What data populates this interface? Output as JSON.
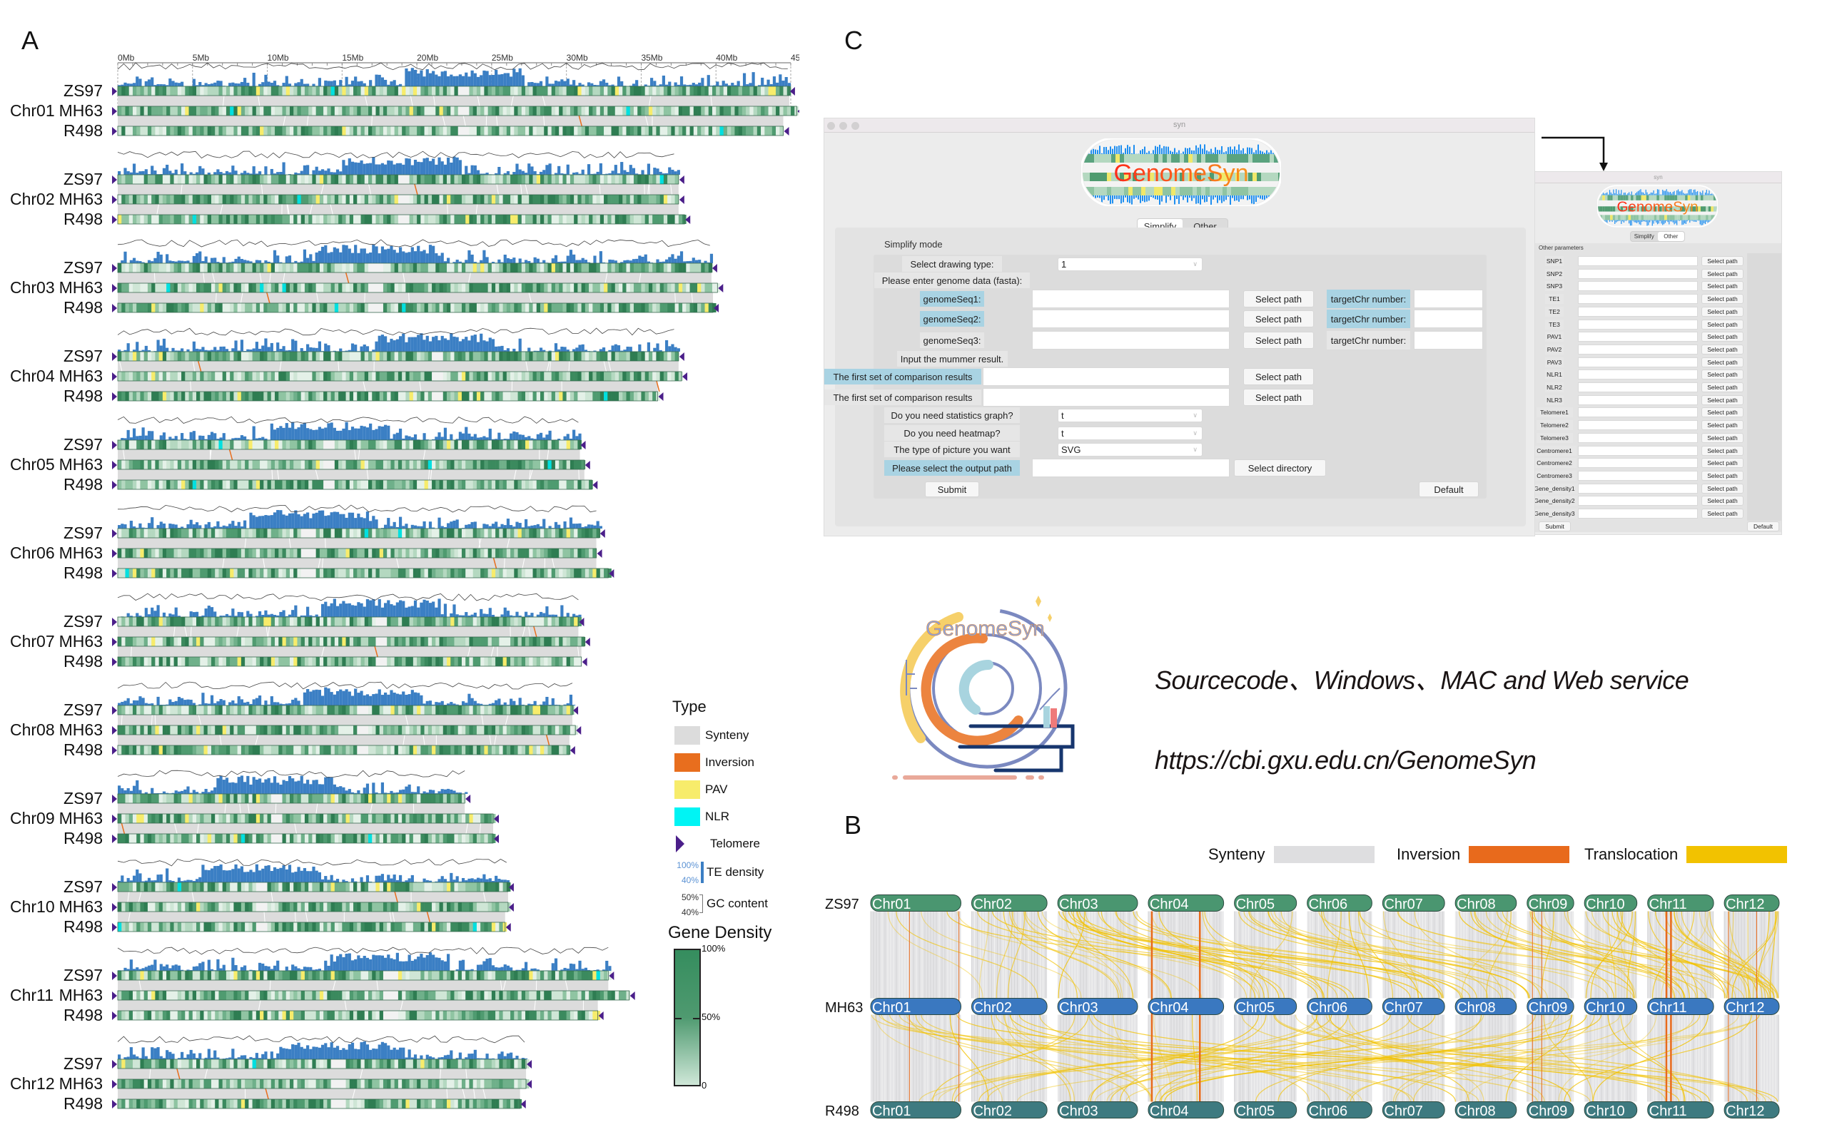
{
  "panel_a": {
    "label": "A",
    "axis_ticks": [
      "0Mb",
      "5Mb",
      "10Mb",
      "15Mb",
      "20Mb",
      "25Mb",
      "30Mb",
      "35Mb",
      "40Mb",
      "45Mb"
    ],
    "axis_max_mb": 45,
    "genomes": [
      "ZS97",
      "MH63",
      "R498"
    ],
    "chromosomes": [
      {
        "name": "Chr01",
        "lengths_mb": [
          44.9,
          45.4,
          44.5
        ]
      },
      {
        "name": "Chr02",
        "lengths_mb": [
          37.5,
          37.5,
          37.9
        ]
      },
      {
        "name": "Chr03",
        "lengths_mb": [
          39.7,
          40.1,
          39.8
        ]
      },
      {
        "name": "Chr04",
        "lengths_mb": [
          37.5,
          37.7,
          36.1
        ]
      },
      {
        "name": "Chr05",
        "lengths_mb": [
          30.9,
          31.2,
          31.7
        ]
      },
      {
        "name": "Chr06",
        "lengths_mb": [
          32.2,
          32.0,
          32.8
        ]
      },
      {
        "name": "Chr07",
        "lengths_mb": [
          30.8,
          31.2,
          31.0
        ]
      },
      {
        "name": "Chr08",
        "lengths_mb": [
          30.4,
          30.6,
          30.2
        ]
      },
      {
        "name": "Chr09",
        "lengths_mb": [
          23.2,
          25.1,
          25.1
        ]
      },
      {
        "name": "Chr10",
        "lengths_mb": [
          26.1,
          26.1,
          25.9
        ]
      },
      {
        "name": "Chr11",
        "lengths_mb": [
          32.8,
          34.2,
          32.1
        ]
      },
      {
        "name": "Chr12",
        "lengths_mb": [
          27.3,
          27.3,
          26.9
        ]
      }
    ],
    "legend": {
      "title": "Type",
      "items": [
        {
          "label": "Synteny",
          "color": "#dcdcdc"
        },
        {
          "label": "Inversion",
          "color": "#e86e1e"
        },
        {
          "label": "PAV",
          "color": "#f7ec6b"
        },
        {
          "label": "NLR",
          "color": "#00f4f4"
        }
      ],
      "telomere": {
        "label": "Telomere",
        "color": "#4b1f8a"
      },
      "te_density": {
        "label": "TE density",
        "max": "100%",
        "min": "40%",
        "color": "#3b7fc4"
      },
      "gc_content": {
        "label": "GC content",
        "max": "50%",
        "min": "40%"
      },
      "gene_density": {
        "title": "Gene Density",
        "ticks": [
          "100%",
          "50%",
          "0"
        ],
        "color_high": "#358d5e",
        "color_low": "#cfe7d8"
      }
    }
  },
  "panel_b": {
    "label": "B",
    "legend": [
      {
        "label": "Synteny",
        "color": "#dedee0"
      },
      {
        "label": "Inversion",
        "color": "#e86a1c"
      },
      {
        "label": "Translocation",
        "color": "#f2c200"
      }
    ],
    "genomes": [
      {
        "name": "ZS97",
        "color": "#4a9670"
      },
      {
        "name": "MH63",
        "color": "#3a78c0"
      },
      {
        "name": "R498",
        "color": "#3e7a80"
      }
    ],
    "chromosomes": [
      "Chr01",
      "Chr02",
      "Chr03",
      "Chr04",
      "Chr05",
      "Chr06",
      "Chr07",
      "Chr08",
      "Chr09",
      "Chr10",
      "Chr11",
      "Chr12"
    ]
  },
  "panel_c": {
    "label": "C",
    "main_window": {
      "title": "syn",
      "logo_text": "GenomeSyn",
      "tabs": [
        "Simplify",
        "Other"
      ],
      "active_tab": "Simplify",
      "mode_label": "Simplify mode",
      "drawing_type": {
        "label": "Select drawing type:",
        "value": "1"
      },
      "genome_data_label": "Please enter genome data (fasta):",
      "genome_seqs": [
        {
          "label": "genomeSeq1:",
          "value": "",
          "button": "Select path",
          "target_label": "targetChr number:",
          "target_value": "",
          "highlight": true
        },
        {
          "label": "genomeSeq2:",
          "value": "",
          "button": "Select path",
          "target_label": "targetChr number:",
          "target_value": "",
          "highlight": true
        },
        {
          "label": "genomeSeq3:",
          "value": "",
          "button": "Select path",
          "target_label": "targetChr number:",
          "target_value": "",
          "highlight": false
        }
      ],
      "mummer_label": "Input the mummer result.",
      "comparisons": [
        {
          "label": "The first set of comparison results",
          "value": "",
          "button": "Select path",
          "highlight": true
        },
        {
          "label": "The first set of comparison results",
          "value": "",
          "button": "Select path",
          "highlight": false
        }
      ],
      "selects": [
        {
          "label": "Do you need statistics graph?",
          "value": "t"
        },
        {
          "label": "Do you need heatmap?",
          "value": "t"
        },
        {
          "label": "The type of picture you want",
          "value": "SVG"
        }
      ],
      "output": {
        "label": "Please select the output path",
        "value": "",
        "button": "Select directory"
      },
      "submit": "Submit",
      "default": "Default"
    },
    "other_window": {
      "title": "syn",
      "logo_text": "GenomeSyn",
      "tabs": [
        "Simplify",
        "Other"
      ],
      "active_tab": "Other",
      "section_label": "Other parameters",
      "params": [
        "SNP1",
        "SNP2",
        "SNP3",
        "TE1",
        "TE2",
        "TE3",
        "PAV1",
        "PAV2",
        "PAV3",
        "NLR1",
        "NLR2",
        "NLR3",
        "Telomere1",
        "Telomere2",
        "Telomere3",
        "Centromere1",
        "Centromere2",
        "Centromere3",
        "Gene_density1",
        "Gene_density2",
        "Gene_density3"
      ],
      "button": "Select path",
      "submit": "Submit",
      "default": "Default"
    }
  },
  "services": {
    "logo_text": "GenomeSyn",
    "platforms": "Sourcecode、Windows、MAC and Web service",
    "url": "https://cbi.gxu.edu.cn/GenomeSyn"
  }
}
